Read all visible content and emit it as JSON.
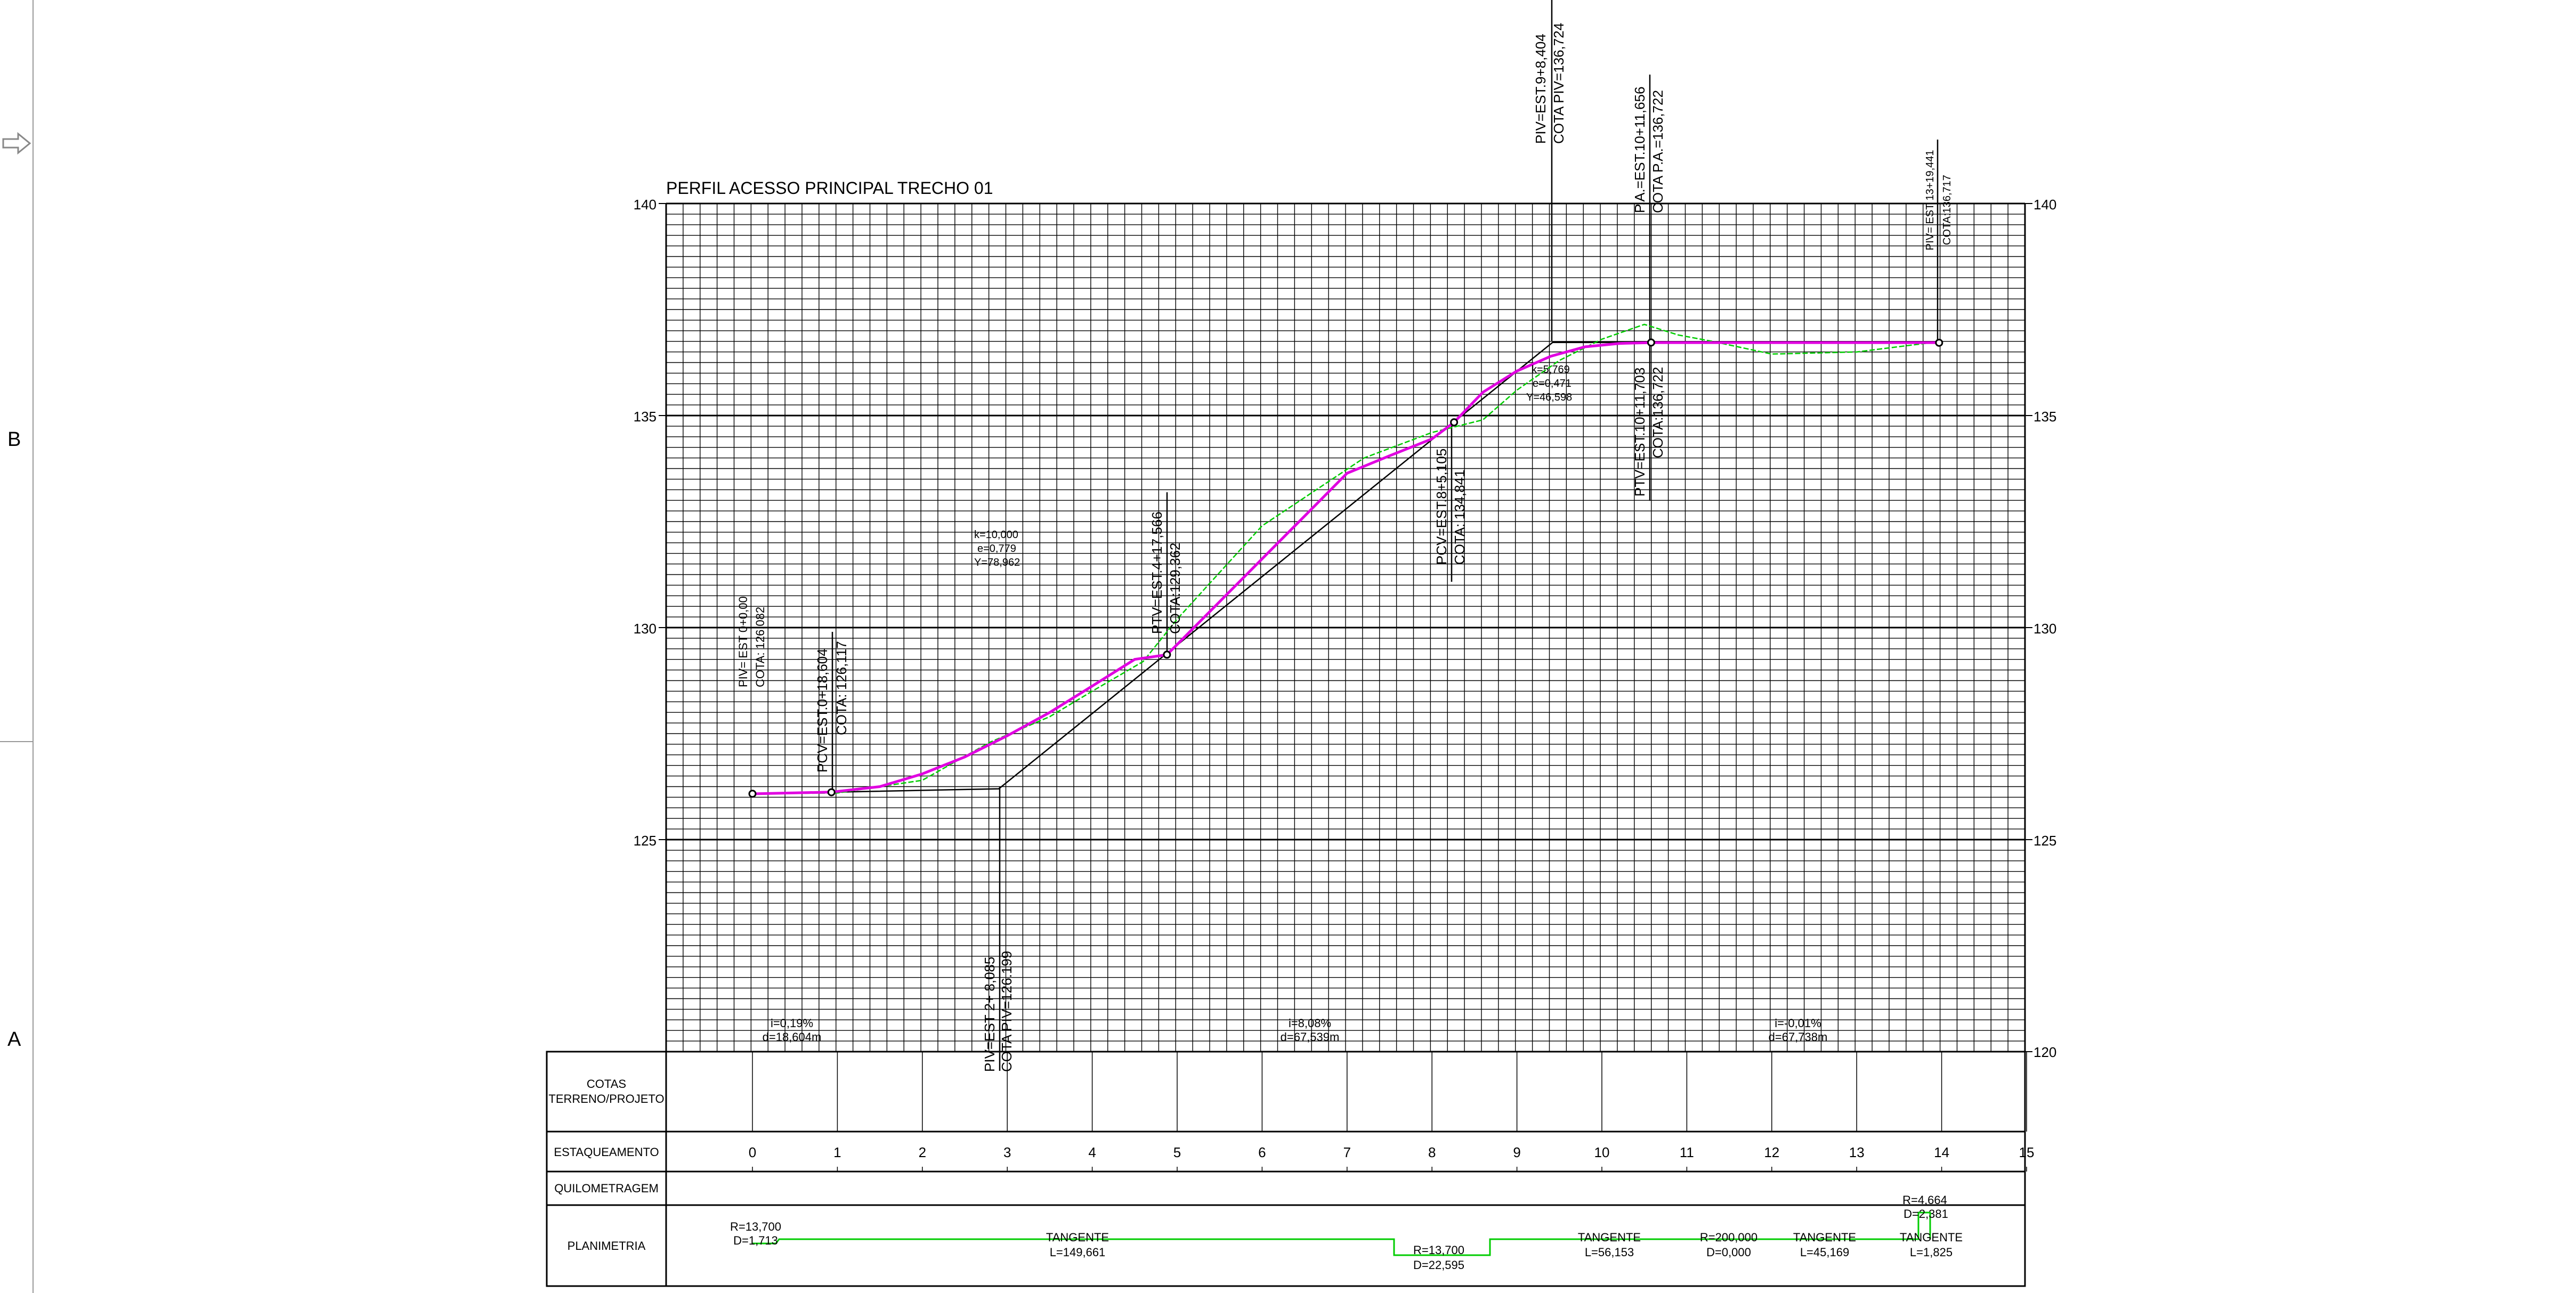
{
  "title": "PERFIL ACESSO PRINCIPAL TRECHO 01",
  "border": {
    "row_b": "B",
    "row_a": "A"
  },
  "axes": {
    "y_ticks": [
      "140",
      "135",
      "130",
      "125",
      "120"
    ],
    "x_ticks": [
      "0",
      "1",
      "2",
      "3",
      "4",
      "5",
      "6",
      "7",
      "8",
      "9",
      "10",
      "11",
      "12",
      "13",
      "14",
      "15"
    ]
  },
  "band_labels": {
    "cotas_1": "COTAS",
    "cotas_2": "TERRENO/PROJETO",
    "estaqueamento": "ESTAQUEAMENTO",
    "quilometragem": "QUILOMETRAGEM",
    "planimetria": "PLANIMETRIA"
  },
  "annotations": {
    "piv_start_1": "PIV= EST 0+0,00",
    "piv_start_2": "COTA: 126,082",
    "pcv1_1": "PCV=EST.0+18,604",
    "pcv1_2": "COTA: 126,117",
    "piv1_1": "PIV=EST 2+ 8,085",
    "piv1_2": "COTA PIV=126.199",
    "curve1_k": "k=10,000",
    "curve1_e": "e=0,779",
    "curve1_y": "Y=78,962",
    "ptv1_1": "PTV=EST.4+17,566",
    "ptv1_2": "COTA:129,362",
    "pcv2_1": "PCV=EST.8+5,105",
    "pcv2_2": "COTA: 134,841",
    "piv2_1": "PIV=EST.9+8,404",
    "piv2_2": "COTA PIV=136,724",
    "curve2_k": "k=5,769",
    "curve2_e": "e=0,471",
    "curve2_y": "Y=46,598",
    "pa_1": "P.A.=EST.10+11,656",
    "pa_2": "COTA P.A.=136,722",
    "ptv2_1": "PTV=EST.10+11,703",
    "ptv2_2": "COTA:136,722",
    "piv_end_1": "PIV= EST 13+19,441",
    "piv_end_2": "COTA:136,717",
    "grade1_i": "i=0,19%",
    "grade1_d": "d=18,604m",
    "grade2_i": "i=8,08%",
    "grade2_d": "d=67,539m",
    "grade3_i": "i=-0,01%",
    "grade3_d": "d=67,738m"
  },
  "planimetria": {
    "curve1_r": "R=13,700",
    "curve1_d": "D=1,713",
    "tangent1": "TANGENTE",
    "tangent1_l": "L=149,661",
    "curve2_r": "R=13,700",
    "curve2_d": "D=22,595",
    "tangent2": "TANGENTE",
    "tangent2_l": "L=56,153",
    "curve3_r": "R=200,000",
    "curve3_d": "D=0,000",
    "tangent3": "TANGENTE",
    "tangent3_l": "L=45,169",
    "curve4_r": "R=4,664",
    "curve4_d": "D=2,381",
    "tangent4": "TANGENTE",
    "tangent4_l": "L=1,825"
  },
  "colors": {
    "design_profile": "#e000e0",
    "terrain_profile": "#00cc00",
    "grid": "#000000",
    "alignment": "#00cc00"
  },
  "chart_data": {
    "type": "line",
    "title": "PERFIL ACESSO PRINCIPAL TRECHO 01",
    "xlabel": "ESTAQUEAMENTO",
    "ylabel": "",
    "xlim": [
      0,
      15
    ],
    "ylim": [
      120,
      140
    ],
    "series": [
      {
        "x": [
          0,
          0.93,
          1.5,
          2,
          2.5,
          3,
          3.5,
          4,
          4.5,
          4.88,
          5.5,
          6,
          6.5,
          7,
          7.5,
          8,
          8.26,
          8.6,
          9,
          9.4,
          9.8,
          10.2,
          10.58,
          11,
          12,
          13,
          14
        ],
        "y": [
          126.08,
          126.12,
          126.25,
          126.55,
          126.95,
          127.45,
          128.0,
          128.62,
          129.25,
          129.36,
          130.61,
          131.62,
          132.63,
          133.64,
          134.05,
          134.45,
          134.84,
          135.55,
          136.05,
          136.4,
          136.62,
          136.7,
          136.72,
          136.72,
          136.72,
          136.72,
          136.72
        ]
      },
      {
        "x": [
          0,
          1,
          2,
          2.8,
          3.5,
          4,
          4.6,
          5,
          5.5,
          6,
          6.6,
          7.2,
          7.6,
          8,
          8.6,
          9,
          9.5,
          10,
          10.5,
          10.9,
          11.3,
          12,
          13,
          14
        ],
        "y": [
          126.08,
          126.1,
          126.4,
          127.3,
          127.9,
          128.5,
          129.2,
          130.2,
          131.3,
          132.4,
          133.2,
          134.0,
          134.3,
          134.6,
          134.9,
          135.6,
          136.3,
          136.8,
          137.15,
          136.9,
          136.75,
          136.45,
          136.5,
          136.75
        ]
      }
    ],
    "vertices": [
      {
        "x": 0,
        "y": 126.082
      },
      {
        "x": 2.9,
        "y": 126.199
      },
      {
        "x": 9.42,
        "y": 136.724
      },
      {
        "x": 13.97,
        "y": 136.717
      }
    ]
  }
}
